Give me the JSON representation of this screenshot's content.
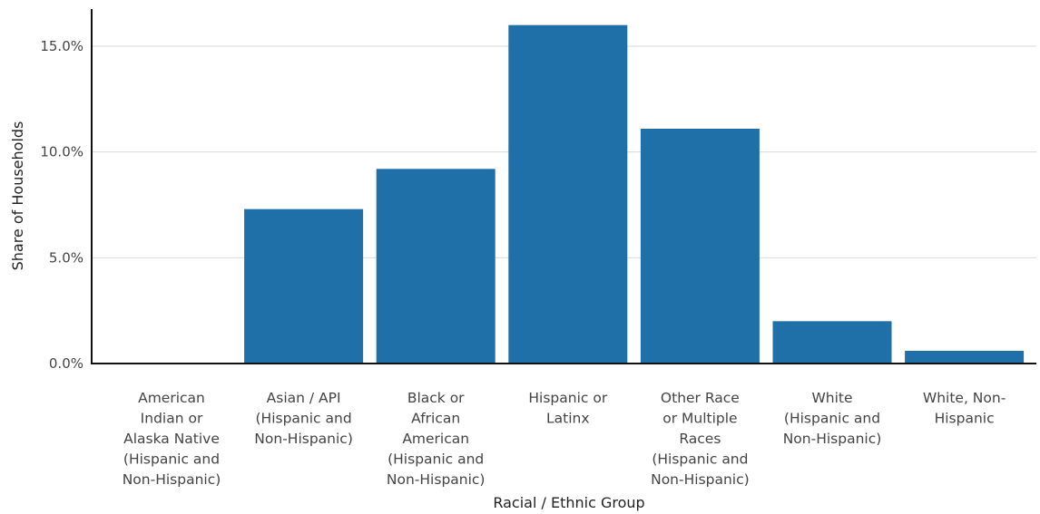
{
  "chart_data": {
    "type": "bar",
    "xlabel": "Racial / Ethnic Group",
    "ylabel": "Share of Households",
    "ylim": [
      0,
      16.5
    ],
    "yticks": [
      0,
      5,
      10,
      15
    ],
    "ytick_labels": [
      "0.0%",
      "5.0%",
      "10.0%",
      "15.0%"
    ],
    "grid": true,
    "bar_color": "#1f6fa8",
    "categories": [
      [
        "American",
        "Indian or",
        "Alaska Native",
        "(Hispanic and",
        "Non-Hispanic)"
      ],
      [
        "Asian / API",
        "(Hispanic and",
        "Non-Hispanic)"
      ],
      [
        "Black or",
        "African",
        "American",
        "(Hispanic and",
        "Non-Hispanic)"
      ],
      [
        "Hispanic or",
        "Latinx"
      ],
      [
        "Other Race",
        "or Multiple",
        "Races",
        "(Hispanic and",
        "Non-Hispanic)"
      ],
      [
        "White",
        "(Hispanic and",
        "Non-Hispanic)"
      ],
      [
        "White, Non-",
        "Hispanic"
      ]
    ],
    "values": [
      0.0,
      7.3,
      9.2,
      16.0,
      11.1,
      2.0,
      0.6
    ]
  }
}
